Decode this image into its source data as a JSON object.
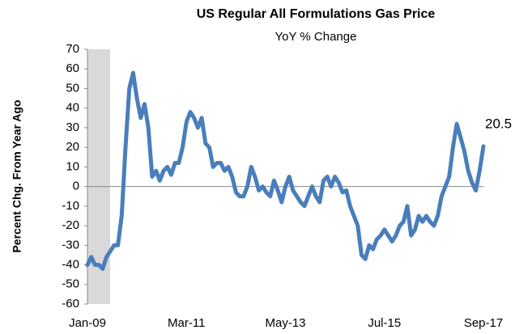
{
  "chart_data": {
    "type": "line",
    "title": "US Regular All Formulations Gas Price",
    "subtitle": "YoY % Change",
    "y_label": "Percent Chg. From Year Ago",
    "categories": [
      "Jan-09",
      null,
      null,
      null,
      null,
      null,
      null,
      null,
      null,
      null,
      null,
      null,
      null,
      null,
      null,
      null,
      null,
      null,
      null,
      null,
      null,
      null,
      null,
      null,
      null,
      null,
      "Mar-11",
      null,
      null,
      null,
      null,
      null,
      null,
      null,
      null,
      null,
      null,
      null,
      null,
      null,
      null,
      null,
      null,
      null,
      null,
      null,
      null,
      null,
      null,
      null,
      null,
      null,
      "May-13",
      null,
      null,
      null,
      null,
      null,
      null,
      null,
      null,
      null,
      null,
      null,
      null,
      null,
      null,
      null,
      null,
      null,
      null,
      null,
      null,
      null,
      null,
      null,
      null,
      null,
      "Jul-15",
      null,
      null,
      null,
      null,
      null,
      null,
      null,
      null,
      null,
      null,
      null,
      null,
      null,
      null,
      null,
      null,
      null,
      null,
      null,
      null,
      null,
      null,
      null,
      null,
      null,
      "Sep-17"
    ],
    "series": [
      {
        "name": "US Regular All Formulations Gas Price",
        "color": "#4a7ebb",
        "values": [
          -40,
          -36,
          -40,
          -40,
          -42,
          -36,
          -33,
          -30,
          -30,
          -15,
          20,
          50,
          58,
          45,
          35,
          42,
          30,
          5,
          8,
          3,
          8,
          10,
          6,
          12,
          12,
          20,
          33,
          38,
          35,
          30,
          35,
          22,
          20,
          10,
          12,
          12,
          8,
          10,
          5,
          -3,
          -5,
          -5,
          0,
          10,
          5,
          -2,
          0,
          -3,
          -5,
          3,
          -2,
          -8,
          0,
          5,
          -2,
          -5,
          -8,
          -10,
          -5,
          0,
          -5,
          -8,
          3,
          5,
          0,
          5,
          2,
          -3,
          -2,
          -10,
          -15,
          -20,
          -35,
          -37,
          -30,
          -32,
          -27,
          -25,
          -22,
          -25,
          -28,
          -25,
          -20,
          -18,
          -10,
          -25,
          -22,
          -15,
          -18,
          -15,
          -18,
          -20,
          -15,
          -5,
          0,
          5,
          20,
          32,
          25,
          18,
          8,
          2,
          -2,
          8,
          20.5
        ]
      }
    ],
    "ylim": [
      -60,
      70
    ],
    "yticks": [
      -60,
      -50,
      -40,
      -30,
      -20,
      -10,
      0,
      10,
      20,
      30,
      40,
      50,
      60,
      70
    ]
  }
}
